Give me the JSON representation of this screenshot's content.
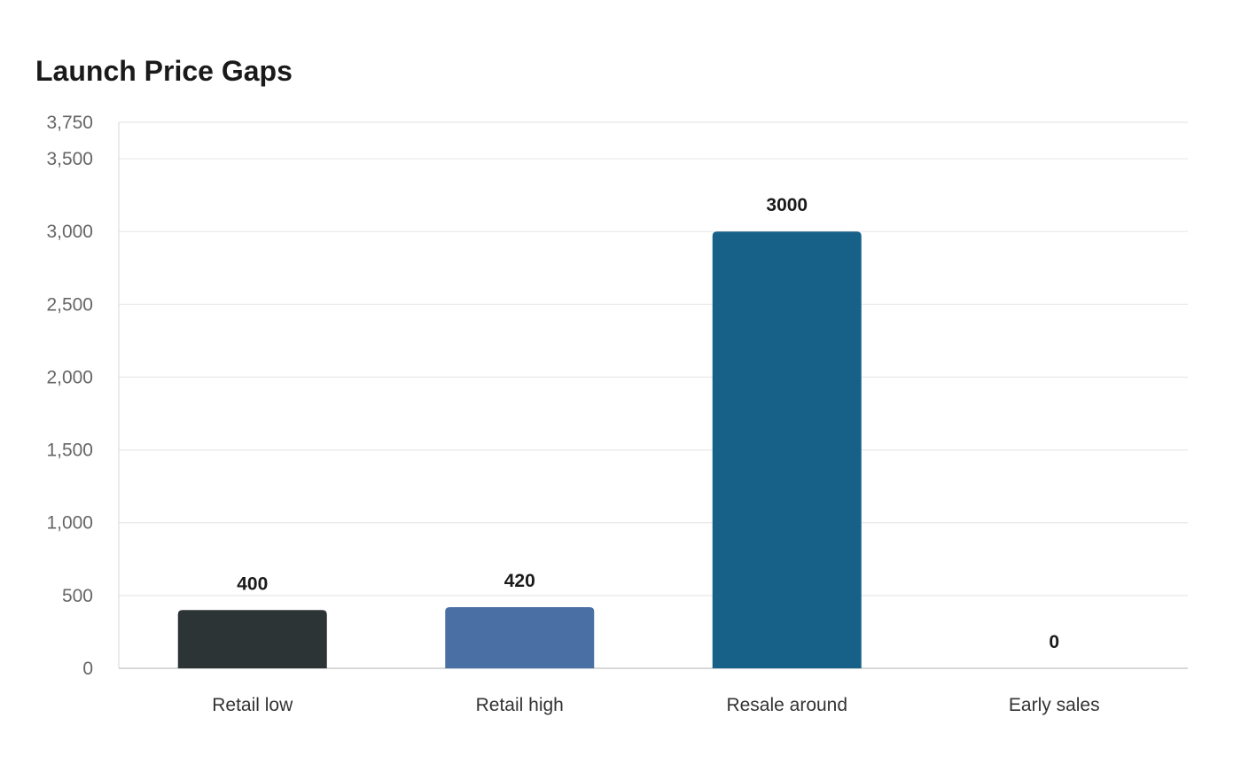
{
  "chart_data": {
    "type": "bar",
    "title": "Launch Price Gaps",
    "xlabel": "",
    "ylabel": "",
    "categories": [
      "Retail low",
      "Retail high",
      "Resale around",
      "Early sales"
    ],
    "values": [
      400,
      420,
      3000,
      0
    ],
    "data_labels": [
      "400",
      "420",
      "3000",
      "0"
    ],
    "ylim": [
      0,
      3750
    ],
    "yticks": [
      0,
      500,
      1000,
      1500,
      2000,
      2500,
      3000,
      3500,
      3750
    ],
    "ytick_labels": [
      "0",
      "500",
      "1,000",
      "1,500",
      "2,000",
      "2,500",
      "3,000",
      "3,500",
      "3,750"
    ],
    "colors": [
      "#2d3436",
      "#4a6fa5",
      "#176189",
      "#2d3436"
    ],
    "grid": true,
    "legend": "none"
  }
}
